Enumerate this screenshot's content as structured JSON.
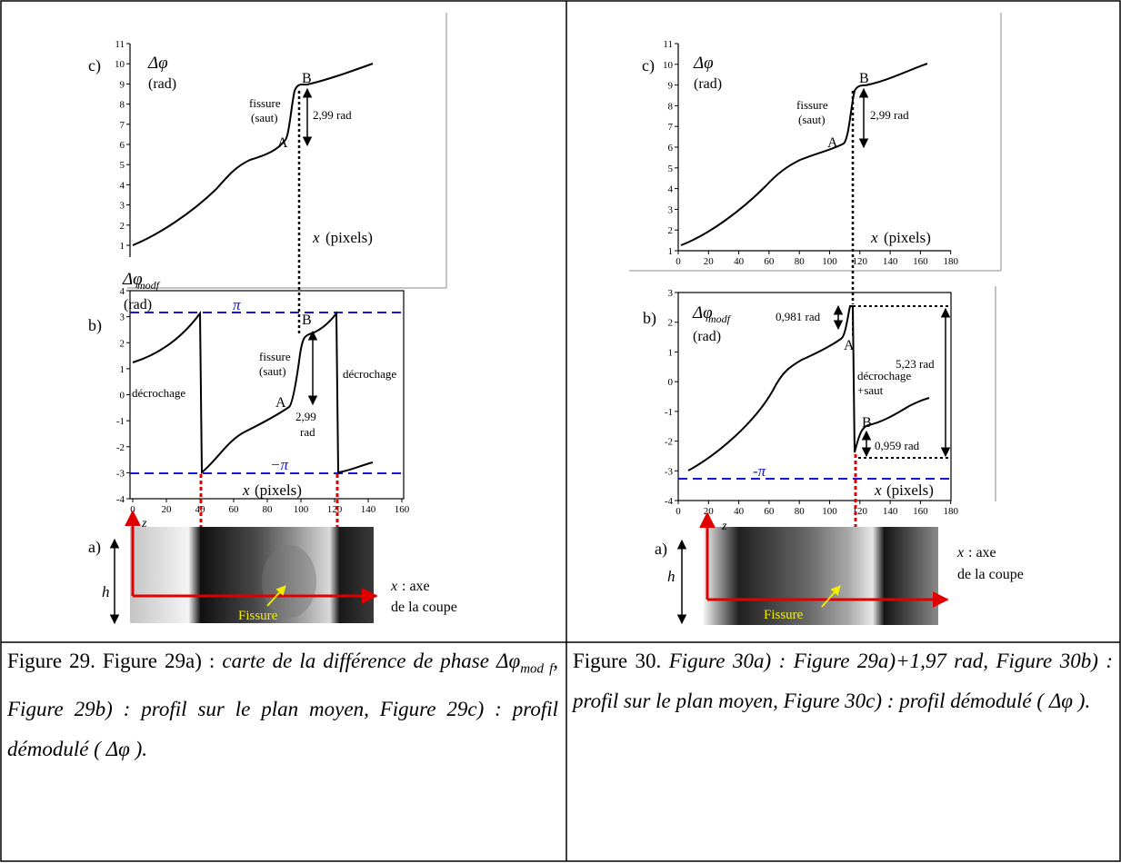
{
  "panels": [
    {
      "id": "fig29",
      "c": {
        "panel_label": "c)",
        "ylabel_sym": "Δφ",
        "yunit": "(rad)",
        "xlabel_var": "x",
        "xlabel_unit": "(pixels)",
        "yticks": [
          "1",
          "2",
          "3",
          "4",
          "5",
          "6",
          "7",
          "8",
          "9",
          "10",
          "11"
        ],
        "xticks": [],
        "point_A": "A",
        "point_B": "B",
        "fissure_1": "fissure",
        "fissure_2": "(saut)",
        "jump": "2,99 rad"
      },
      "b": {
        "panel_label": "b)",
        "ylabel_sym": "Δφ",
        "ylabel_sub": "modf",
        "yunit": "(rad)",
        "xlabel_var": "x",
        "xlabel_unit": "(pixels)",
        "yticks": [
          "4",
          "3",
          "2",
          "1",
          "0",
          "-1",
          "-2",
          "-3",
          "-4"
        ],
        "xticks": [
          "0",
          "20",
          "40",
          "60",
          "80",
          "100",
          "120",
          "140",
          "160"
        ],
        "pi": "π",
        "minus_pi": "−π",
        "point_A": "A",
        "point_B": "B",
        "fissure_1": "fissure",
        "fissure_2": "(saut)",
        "jump_1": "2,99",
        "jump_2": "rad",
        "decrochage_left": "décrochage",
        "decrochage_right": "décrochage"
      },
      "a": {
        "panel_label": "a)",
        "z": "z",
        "h": "h",
        "x_var": "x",
        "x_axe": ": axe",
        "x_coupe": "de la coupe",
        "fissure": "Fissure"
      }
    },
    {
      "id": "fig30",
      "c": {
        "panel_label": "c)",
        "ylabel_sym": "Δφ",
        "yunit": "(rad)",
        "xlabel_var": "x",
        "xlabel_unit": "(pixels)",
        "yticks": [
          "1",
          "2",
          "3",
          "4",
          "5",
          "6",
          "7",
          "8",
          "9",
          "10",
          "11"
        ],
        "xticks": [
          "0",
          "20",
          "40",
          "60",
          "80",
          "100",
          "120",
          "140",
          "160",
          "180"
        ],
        "point_A": "A",
        "point_B": "B",
        "fissure_1": "fissure",
        "fissure_2": "(saut)",
        "jump": "2,99 rad"
      },
      "b": {
        "panel_label": "b)",
        "ylabel_sym": "Δφ",
        "ylabel_sub": "modf",
        "yunit": "(rad)",
        "xlabel_var": "x",
        "xlabel_unit": "(pixels)",
        "yticks": [
          "3",
          "2",
          "1",
          "0",
          "-1",
          "-2",
          "-3",
          "-4"
        ],
        "xticks": [
          "0",
          "20",
          "40",
          "60",
          "80",
          "100",
          "120",
          "140",
          "160",
          "180"
        ],
        "minus_pi": "-π",
        "point_A": "A",
        "point_B": "B",
        "d1": "0,981 rad",
        "d2": "5,23 rad",
        "d3": "0,959 rad",
        "decrochage_1": "décrochage",
        "decrochage_2": "+saut"
      },
      "a": {
        "panel_label": "a)",
        "z": "z",
        "h": "h",
        "x_var": "x",
        "x_axe": ": axe",
        "x_coupe": "de la coupe",
        "fissure": "Fissure"
      }
    }
  ],
  "captions": {
    "fig29": {
      "lead": "Figure 29. Figure 29a) : ",
      "t1": "carte de la différence de phase ",
      "sym": "Δφ",
      "sub": "mod f",
      "t2": ", Figure 29b) : profil sur le plan moyen, Figure 29c) : profil démodulé ( ",
      "sym2": "Δφ",
      "t3": " )."
    },
    "fig30": {
      "lead": "Figure 30. ",
      "t1": "Figure 30a) : Figure 29a)+1,97 rad, Figure 30b) : profil sur le plan moyen, Figure 30c) : profil démodulé ( ",
      "sym": "Δφ",
      "t2": " )."
    }
  },
  "colors": {
    "red": "#e10000",
    "blue": "#1414dc",
    "yellow": "#f2ee00"
  }
}
